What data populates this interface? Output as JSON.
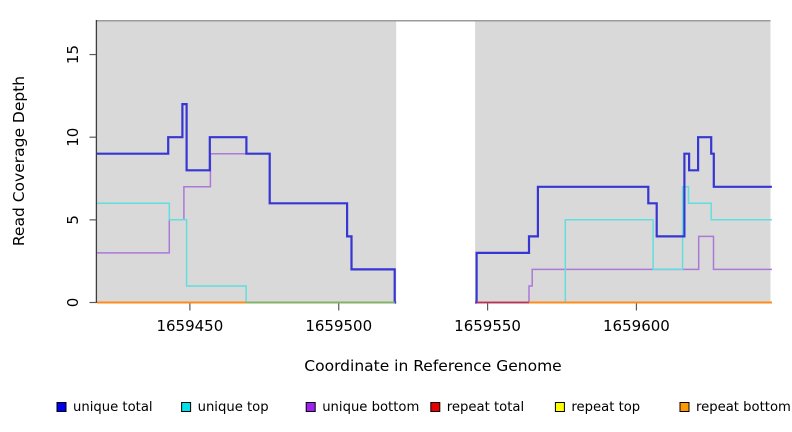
{
  "chart_data": {
    "type": "line",
    "subtype": "step-coverage-plot",
    "title": "",
    "xlabel": "Coordinate in Reference Genome",
    "ylabel": "Read Coverage Depth",
    "x_range": [
      1659418.8,
      1659645.5
    ],
    "y_range": [
      0,
      17.1
    ],
    "x_ticks": {
      "values": [
        1659450,
        1659500,
        1659550,
        1659600
      ],
      "labels": [
        "1659450",
        "1659500",
        "1659550",
        "1659600"
      ]
    },
    "y_ticks": {
      "values": [
        0,
        5,
        10,
        15
      ],
      "labels": [
        "0",
        "5",
        "10",
        "15"
      ]
    },
    "grid": "off",
    "panel_background": "#d9d9d9",
    "masked_region": {
      "x_start": 1659518.8,
      "x_end": 1659546.3,
      "color": "#ffffff"
    },
    "series": [
      {
        "name": "repeat total",
        "color": "#e60000",
        "width": 1.5,
        "steps": [
          [
            1659418.8,
            0
          ]
        ]
      },
      {
        "name": "repeat top",
        "color": "#ffff00",
        "width": 1.5,
        "steps": [
          [
            1659418.8,
            0
          ]
        ]
      },
      {
        "name": "repeat bottom",
        "color": "#ff8c1a",
        "width": 2.1,
        "steps": [
          [
            1659418.8,
            0
          ]
        ]
      },
      {
        "name": "unique bottom",
        "color": "#ab79d8",
        "width": 1.5,
        "steps": [
          [
            1659418.8,
            3
          ],
          [
            1659443.1,
            5
          ],
          [
            1659448.0,
            7
          ],
          [
            1659456.9,
            9
          ],
          [
            1659476.8,
            6
          ],
          [
            1659502.8,
            4
          ],
          [
            1659504.3,
            2
          ],
          [
            1659518.8,
            0
          ],
          [
            1659563.9,
            1
          ],
          [
            1659565.0,
            2
          ],
          [
            1659620.9,
            4
          ],
          [
            1659625.9,
            2
          ]
        ]
      },
      {
        "name": "unique top",
        "color": "#63dede",
        "width": 1.5,
        "steps": [
          [
            1659418.8,
            6
          ],
          [
            1659443.1,
            5
          ],
          [
            1659448.9,
            1
          ],
          [
            1659468.9,
            0
          ],
          [
            1659576.1,
            5
          ],
          [
            1659605.6,
            2
          ],
          [
            1659615.5,
            7
          ],
          [
            1659617.5,
            6
          ],
          [
            1659625.1,
            5
          ]
        ]
      },
      {
        "name": "unique total",
        "color": "#3636d2",
        "width": 2.2,
        "steps": [
          [
            1659418.8,
            9
          ],
          [
            1659442.7,
            10
          ],
          [
            1659447.5,
            12
          ],
          [
            1659448.9,
            8
          ],
          [
            1659456.7,
            10
          ],
          [
            1659469.0,
            9
          ],
          [
            1659476.8,
            6
          ],
          [
            1659502.8,
            4
          ],
          [
            1659504.3,
            2
          ],
          [
            1659518.8,
            0
          ],
          [
            1659546.3,
            3
          ],
          [
            1659563.9,
            4
          ],
          [
            1659566.9,
            7
          ],
          [
            1659604.0,
            6
          ],
          [
            1659606.8,
            4
          ],
          [
            1659616.1,
            9
          ],
          [
            1659617.7,
            8
          ],
          [
            1659620.7,
            10
          ],
          [
            1659625.1,
            9
          ],
          [
            1659626.0,
            7
          ]
        ]
      }
    ],
    "baseline_overlays": [
      {
        "name": "baseline-orange-left",
        "color": "#ff8c1a",
        "width": 2.1,
        "x_start": 1659418.8,
        "x_end": 1659518.8,
        "y": 0
      },
      {
        "name": "baseline-green",
        "color": "#74b874",
        "width": 1.7,
        "x_start": 1659468.9,
        "x_end": 1659518.8,
        "y": 0
      },
      {
        "name": "baseline-orange-right",
        "color": "#ff8c1a",
        "width": 2.1,
        "x_start": 1659546.3,
        "x_end": 1659645.5,
        "y": 0
      },
      {
        "name": "baseline-maroon",
        "color": "#b03366",
        "width": 1.7,
        "x_start": 1659546.3,
        "x_end": 1659563.9,
        "y": 0
      }
    ],
    "legend": {
      "position": "bottom",
      "items": [
        {
          "label": "unique total",
          "color": "#0000ee"
        },
        {
          "label": "unique top",
          "color": "#00e0ea"
        },
        {
          "label": "unique bottom",
          "color": "#a020f0"
        },
        {
          "label": "repeat total",
          "color": "#e60000"
        },
        {
          "label": "repeat top",
          "color": "#ffff00"
        },
        {
          "label": "repeat bottom",
          "color": "#ff9900"
        }
      ]
    }
  },
  "labels": {
    "x_axis_title": "Coordinate in Reference Genome",
    "y_axis_title": "Read Coverage Depth"
  },
  "colors": {
    "panel": "#d9d9d9",
    "axis_line": "#3d3d3d",
    "tick": "#5a5a5a",
    "panel_top_border": "#9b9b9b",
    "mask": "#ffffff",
    "background": "#ffffff"
  }
}
